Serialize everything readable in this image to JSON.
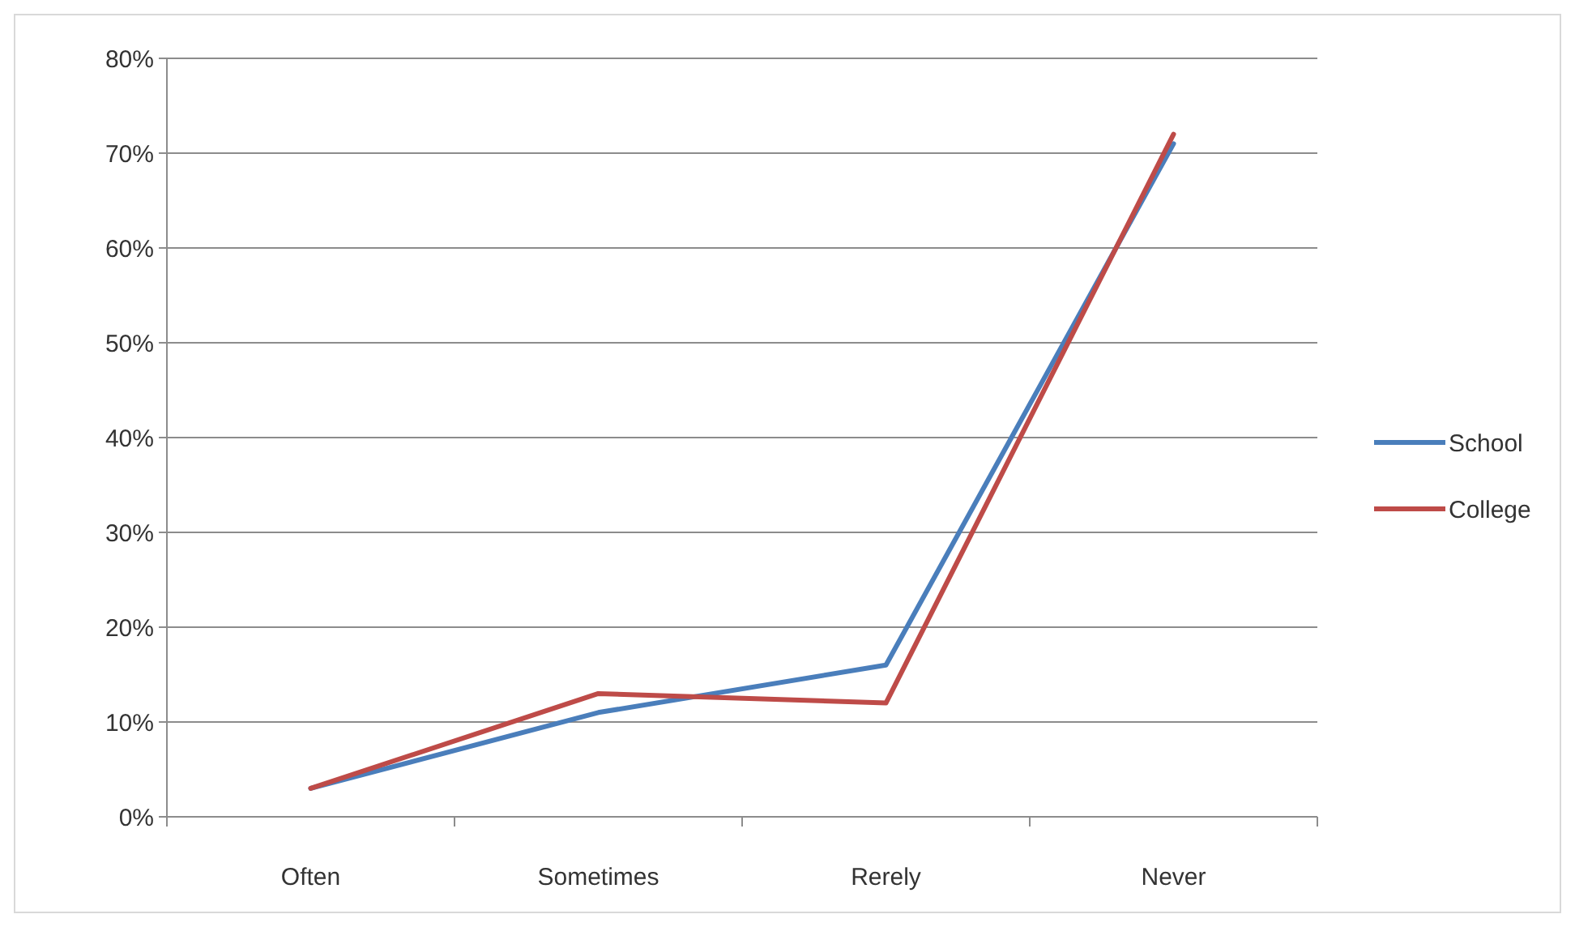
{
  "chart_data": {
    "type": "line",
    "categories": [
      "Often",
      "Sometimes",
      "Rerely",
      "Never"
    ],
    "series": [
      {
        "name": "School",
        "color": "#4a7ebb",
        "values": [
          3,
          11,
          16,
          71
        ]
      },
      {
        "name": "College",
        "color": "#be4b48",
        "values": [
          3,
          13,
          12,
          72
        ]
      }
    ],
    "ylim": [
      0,
      80
    ],
    "yticks": [
      {
        "value": 0,
        "label": "0%"
      },
      {
        "value": 10,
        "label": "10%"
      },
      {
        "value": 20,
        "label": "20%"
      },
      {
        "value": 30,
        "label": "30%"
      },
      {
        "value": 40,
        "label": "40%"
      },
      {
        "value": 50,
        "label": "50%"
      },
      {
        "value": 60,
        "label": "60%"
      },
      {
        "value": 70,
        "label": "70%"
      },
      {
        "value": 80,
        "label": "80%"
      }
    ],
    "grid": "y",
    "legend": "right",
    "marker": "none",
    "line_style": "solid"
  }
}
